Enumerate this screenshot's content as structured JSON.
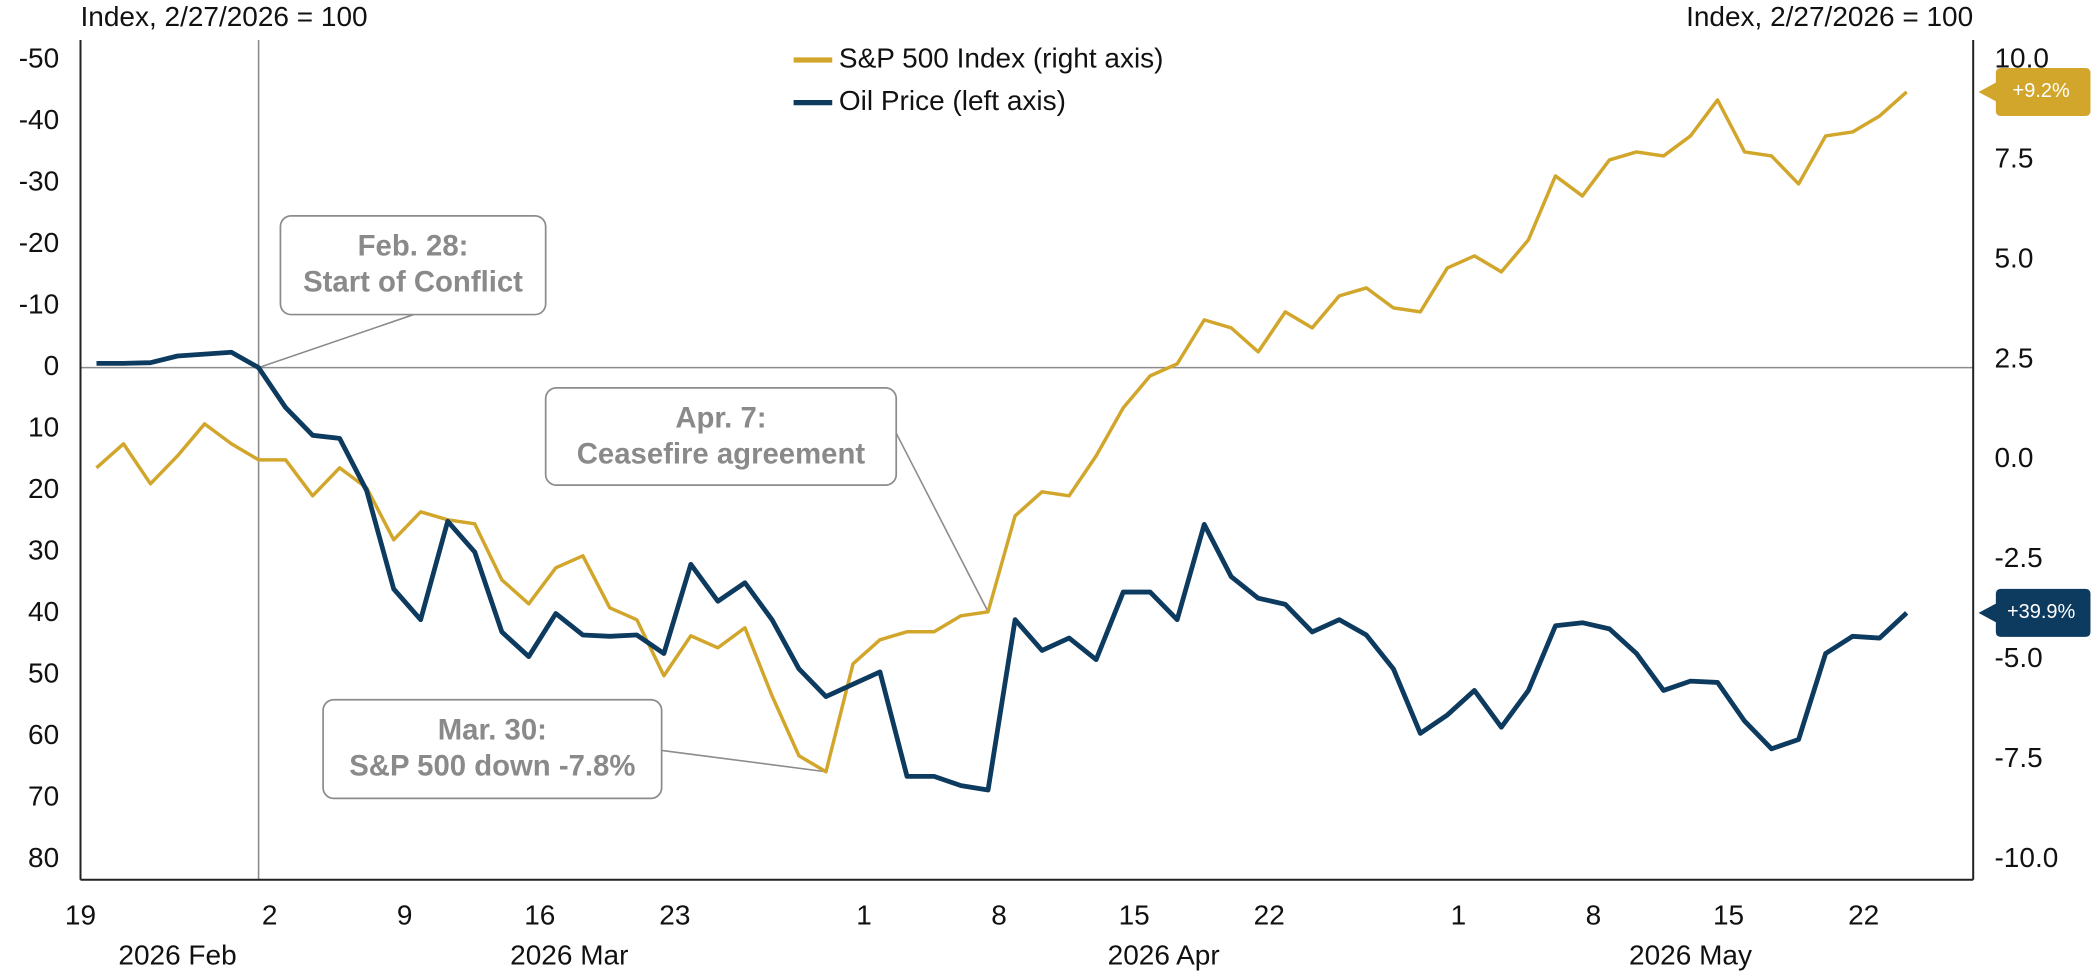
{
  "chart_data": {
    "type": "line",
    "ylabel": "Index, 2/27/2026 = 100",
    "y2label": "Index, 2/27/2026 = 100",
    "categories": [
      "19",
      null,
      null,
      null,
      null,
      null,
      null,
      "2",
      null,
      null,
      null,
      null,
      "9",
      null,
      null,
      null,
      null,
      "16",
      null,
      null,
      null,
      null,
      "23",
      null,
      null,
      null,
      null,
      null,
      null,
      "1",
      null,
      null,
      null,
      null,
      "8",
      null,
      null,
      null,
      null,
      "15",
      null,
      null,
      null,
      null,
      "22",
      null,
      null,
      null,
      null,
      null,
      null,
      "1",
      null,
      null,
      null,
      null,
      "8",
      null,
      null,
      null,
      null,
      "15",
      null,
      null,
      null,
      null,
      "22",
      null
    ],
    "month_labels": [
      "2026 Feb",
      "2026 Mar",
      "2026 Apr",
      "2026 May"
    ],
    "series": [
      {
        "name": "S&P 500 Index (right axis)",
        "color": "#d1a62b",
        "axis": "y2",
        "values": [
          -0.2,
          0.4,
          -0.6,
          0.1,
          0.9,
          0.4,
          0.0,
          0.0,
          -0.9,
          -0.2,
          -0.7,
          -2.0,
          -1.3,
          -1.5,
          -1.6,
          -3.0,
          -3.6,
          -2.7,
          -2.4,
          -3.7,
          -4.0,
          -5.4,
          -4.4,
          -4.7,
          -4.2,
          -5.9,
          -7.4,
          -7.8,
          -5.1,
          -4.5,
          -4.3,
          -4.3,
          -3.9,
          -3.8,
          -1.4,
          -0.8,
          -0.9,
          0.1,
          1.3,
          2.1,
          2.4,
          3.5,
          3.3,
          2.7,
          3.7,
          3.3,
          4.1,
          4.3,
          3.8,
          3.7,
          4.8,
          5.1,
          4.7,
          5.5,
          7.1,
          6.6,
          7.5,
          7.7,
          7.6,
          8.1,
          9.0,
          7.7,
          7.6,
          6.9,
          8.1,
          8.2,
          8.6,
          9.2
        ],
        "value_labels": [
          null,
          null,
          null,
          null,
          null,
          null,
          null,
          null,
          null,
          null,
          null,
          null,
          null,
          null,
          null,
          null,
          null,
          null,
          null,
          null,
          null,
          null,
          null,
          null,
          null,
          null,
          null,
          null,
          null,
          null,
          null,
          null,
          null,
          null,
          null,
          null,
          null,
          null,
          null,
          null,
          null,
          null,
          null,
          null,
          null,
          null,
          null,
          null,
          null,
          null,
          null,
          null,
          null,
          null,
          null,
          null,
          null,
          null,
          null,
          null,
          null,
          null,
          null,
          null,
          null,
          null,
          null,
          "+9.2%"
        ]
      },
      {
        "name": "Oil Price (left axis)",
        "color": "#0d3a5f",
        "values": [
          -0.7,
          -0.7,
          -0.8,
          -1.9,
          -2.2,
          -2.5,
          0,
          6.5,
          11,
          11.5,
          20,
          36,
          41,
          25,
          30,
          43,
          47,
          40,
          43.5,
          43.7,
          43.5,
          46.5,
          32,
          38,
          35,
          41,
          49,
          53.5,
          51.5,
          49.5,
          66.5,
          66.5,
          68,
          68.7,
          41,
          46,
          44,
          47.5,
          36.5,
          36.5,
          41,
          25.5,
          34,
          37.5,
          38.5,
          43,
          41,
          43.5,
          49,
          59.5,
          56.5,
          52.5,
          58.5,
          52.5,
          42,
          41.5,
          42.5,
          46.5,
          52.5,
          51,
          51.2,
          57.5,
          62,
          60.5,
          46.5,
          43.7,
          44,
          39.9
        ],
        "value_labels": [
          null,
          null,
          null,
          null,
          null,
          null,
          null,
          null,
          null,
          null,
          null,
          null,
          null,
          null,
          null,
          null,
          null,
          null,
          null,
          null,
          null,
          null,
          null,
          null,
          null,
          null,
          null,
          null,
          null,
          null,
          null,
          null,
          null,
          null,
          null,
          null,
          null,
          null,
          null,
          null,
          null,
          null,
          null,
          null,
          null,
          null,
          null,
          null,
          null,
          null,
          null,
          null,
          null,
          null,
          null,
          null,
          null,
          null,
          null,
          null,
          null,
          null,
          null,
          null,
          null,
          null,
          null,
          "+39.9%"
        ]
      }
    ],
    "ylim": [
      83.3,
      -53.3
    ],
    "yticks": [
      -50,
      -40,
      -30,
      -20,
      -10,
      0,
      10,
      20,
      30,
      40,
      50,
      60,
      70,
      80
    ],
    "y2lim": [
      -10.5,
      10.5
    ],
    "y2ticks": [
      {
        "value": 10,
        "label": "10.0"
      },
      {
        "value": 7.5,
        "label": "7.5"
      },
      {
        "value": 5,
        "label": "5.0"
      },
      {
        "value": 2.5,
        "label": "2.5"
      },
      {
        "value": 0,
        "label": "0.0"
      },
      {
        "value": -2.5,
        "label": "-2.5"
      },
      {
        "value": -5,
        "label": "-5.0"
      },
      {
        "value": -7.5,
        "label": "-7.5"
      },
      {
        "value": -10,
        "label": "-10.0"
      }
    ],
    "grid": false,
    "legend": "top-center",
    "annotations": [
      {
        "text": [
          "Feb. 28:",
          "Start of Conflict"
        ]
      },
      {
        "text": [
          "Apr. 7:",
          "Ceasefire agreement"
        ]
      },
      {
        "text": [
          "Mar. 30:",
          "S&P 500 down -7.8%"
        ]
      }
    ]
  }
}
